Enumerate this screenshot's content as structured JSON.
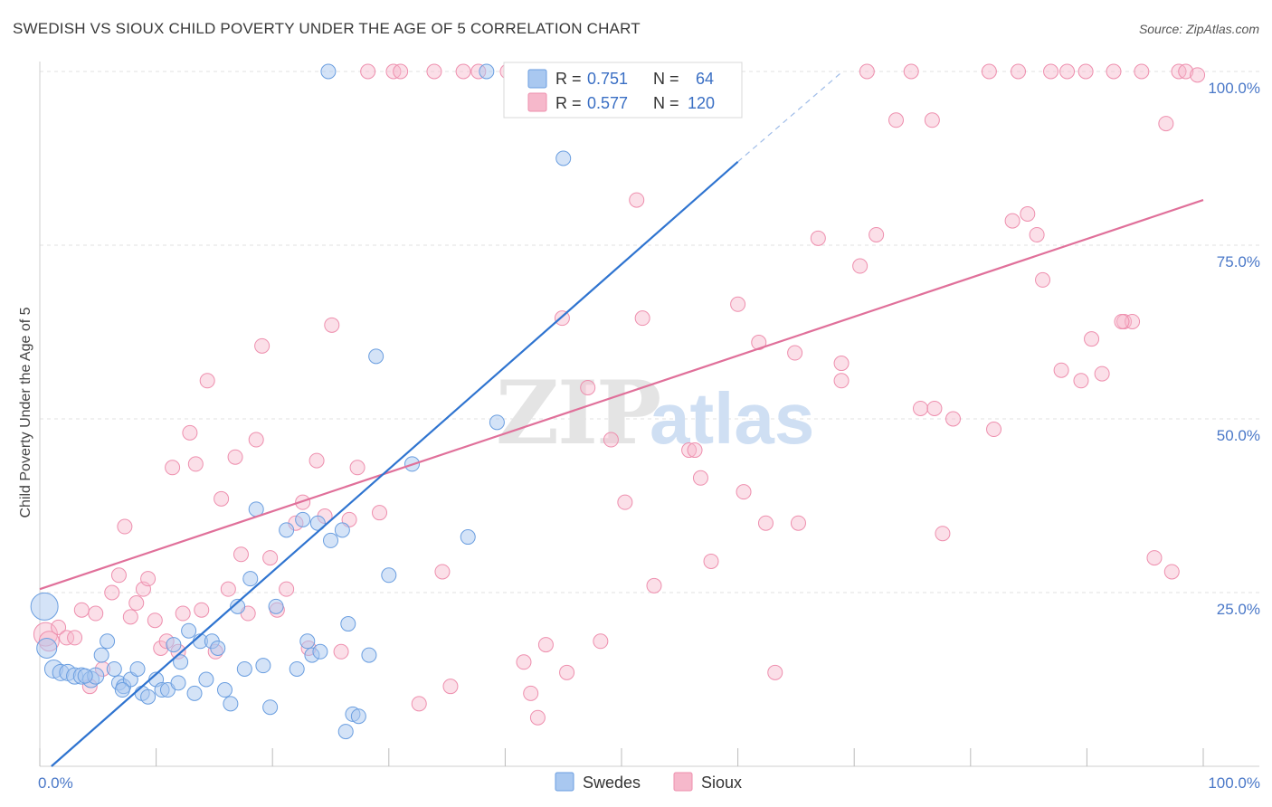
{
  "header": {
    "title": "SWEDISH VS SIOUX CHILD POVERTY UNDER THE AGE OF 5 CORRELATION CHART",
    "source": "Source: ZipAtlas.com"
  },
  "watermark": {
    "zip": "ZIP",
    "atlas": "atlas"
  },
  "legend": {
    "rows": [
      {
        "r_label": "R =",
        "r_value": "0.751",
        "n_label": "N =",
        "n_value": "64"
      },
      {
        "r_label": "R =",
        "r_value": "0.577",
        "n_label": "N =",
        "n_value": "120"
      }
    ]
  },
  "chart_data": {
    "type": "scatter",
    "title": "SWEDISH VS SIOUX CHILD POVERTY UNDER THE AGE OF 5 CORRELATION CHART",
    "xlabel": "",
    "ylabel": "Child Poverty Under the Age of 5",
    "xlim": [
      0,
      100
    ],
    "ylim": [
      0,
      100
    ],
    "x_tick_labels": [
      "0.0%",
      "100.0%"
    ],
    "y_tick_labels": [
      "25.0%",
      "50.0%",
      "75.0%",
      "100.0%"
    ],
    "y_ticks": [
      25,
      50,
      75,
      100
    ],
    "grid": true,
    "legend_position": "top-center",
    "colors": {
      "swedes_fill": "#a9c8f0",
      "swedes_stroke": "#6a9ee0",
      "swedes_line": "#2f74d0",
      "sioux_fill": "#f6b8cb",
      "sioux_stroke": "#ee8fae",
      "sioux_line": "#e0709a"
    },
    "series": [
      {
        "name": "Swedes",
        "r": 0.751,
        "n": 64,
        "trend": {
          "x": [
            1,
            60
          ],
          "y": [
            0,
            87
          ]
        },
        "trend_dash": {
          "x": [
            60,
            69
          ],
          "y": [
            87,
            100
          ]
        },
        "points": [
          [
            0.4,
            23,
            14
          ],
          [
            0.6,
            17,
            10
          ],
          [
            1.2,
            14,
            9
          ],
          [
            1.8,
            13.5,
            8
          ],
          [
            2.4,
            13.5,
            8
          ],
          [
            3,
            13,
            8
          ],
          [
            3.6,
            13,
            8
          ],
          [
            4.4,
            12.5,
            8
          ],
          [
            4.8,
            13,
            8
          ],
          [
            5.3,
            16,
            7
          ],
          [
            5.8,
            18,
            7
          ],
          [
            6.4,
            14,
            7
          ],
          [
            6.8,
            12,
            7
          ],
          [
            7.2,
            11.5,
            7
          ],
          [
            7.8,
            12.5,
            7
          ],
          [
            8.4,
            14,
            7
          ],
          [
            8.8,
            10.5,
            7
          ],
          [
            9.3,
            10,
            7
          ],
          [
            10,
            12.5,
            7
          ],
          [
            10.5,
            11,
            7
          ],
          [
            11,
            11,
            7
          ],
          [
            11.5,
            17.5,
            7
          ],
          [
            12.1,
            15,
            7
          ],
          [
            12.8,
            19.5,
            7
          ],
          [
            13.3,
            10.5,
            7
          ],
          [
            13.8,
            18,
            7
          ],
          [
            14.3,
            12.5,
            7
          ],
          [
            14.8,
            18,
            7
          ],
          [
            15.3,
            17,
            7
          ],
          [
            15.9,
            11,
            7
          ],
          [
            16.4,
            9,
            7
          ],
          [
            17,
            23,
            7
          ],
          [
            17.6,
            14,
            7
          ],
          [
            18.1,
            27,
            7
          ],
          [
            18.6,
            37,
            7
          ],
          [
            19.2,
            14.5,
            7
          ],
          [
            19.8,
            8.5,
            7
          ],
          [
            20.3,
            23,
            7
          ],
          [
            21.2,
            34,
            7
          ],
          [
            22.1,
            14,
            7
          ],
          [
            22.6,
            35.5,
            7
          ],
          [
            23,
            18,
            7
          ],
          [
            23.4,
            16,
            7
          ],
          [
            24.1,
            16.5,
            7
          ],
          [
            25,
            32.5,
            7
          ],
          [
            26,
            34,
            7
          ],
          [
            26.5,
            20.5,
            7
          ],
          [
            26.9,
            7.5,
            7
          ],
          [
            27.4,
            7.2,
            7
          ],
          [
            28.3,
            16,
            7
          ],
          [
            28.9,
            59,
            7
          ],
          [
            30,
            27.5,
            7
          ],
          [
            32,
            43.5,
            7
          ],
          [
            36.8,
            33,
            7
          ],
          [
            38.4,
            100,
            7
          ],
          [
            39.3,
            49.5,
            7
          ],
          [
            43.6,
            100,
            7
          ],
          [
            45,
            87.5,
            7
          ],
          [
            26.3,
            5,
            7
          ],
          [
            24.8,
            100,
            7
          ],
          [
            23.9,
            35,
            7
          ],
          [
            11.9,
            12,
            7
          ],
          [
            7.1,
            11,
            7
          ],
          [
            3.9,
            13,
            7
          ]
        ]
      },
      {
        "name": "Sioux",
        "r": 0.577,
        "n": 120,
        "trend": {
          "x": [
            0,
            100
          ],
          "y": [
            25.5,
            81.5
          ]
        },
        "points": [
          [
            0.5,
            19,
            12
          ],
          [
            0.8,
            18,
            10
          ],
          [
            1.6,
            20,
            7
          ],
          [
            2.3,
            18.5,
            7
          ],
          [
            3,
            18.5,
            7
          ],
          [
            3.6,
            22.5,
            7
          ],
          [
            4.3,
            11.5,
            7
          ],
          [
            4.8,
            22,
            7
          ],
          [
            5.4,
            14,
            7
          ],
          [
            6.2,
            25,
            7
          ],
          [
            6.8,
            27.5,
            7
          ],
          [
            7.3,
            34.5,
            7
          ],
          [
            7.8,
            21.5,
            7
          ],
          [
            8.3,
            23.5,
            7
          ],
          [
            8.9,
            25.5,
            7
          ],
          [
            9.3,
            27,
            7
          ],
          [
            9.9,
            21,
            7
          ],
          [
            10.4,
            17,
            7
          ],
          [
            10.9,
            18,
            7
          ],
          [
            11.4,
            43,
            7
          ],
          [
            11.9,
            16.5,
            7
          ],
          [
            12.3,
            22,
            7
          ],
          [
            12.9,
            48,
            7
          ],
          [
            13.4,
            43.5,
            7
          ],
          [
            13.9,
            22.5,
            7
          ],
          [
            14.4,
            55.5,
            7
          ],
          [
            15.1,
            16.5,
            7
          ],
          [
            15.6,
            38.5,
            7
          ],
          [
            16.2,
            25.5,
            7
          ],
          [
            16.8,
            44.5,
            7
          ],
          [
            17.3,
            30.5,
            7
          ],
          [
            17.9,
            22,
            7
          ],
          [
            18.6,
            47,
            7
          ],
          [
            19.1,
            60.5,
            7
          ],
          [
            19.8,
            30,
            7
          ],
          [
            20.4,
            22.5,
            7
          ],
          [
            21.2,
            25.5,
            7
          ],
          [
            22,
            35,
            7
          ],
          [
            22.6,
            38,
            7
          ],
          [
            23.1,
            17,
            7
          ],
          [
            23.8,
            44,
            7
          ],
          [
            24.5,
            36,
            7
          ],
          [
            25.1,
            63.5,
            7
          ],
          [
            25.9,
            16.5,
            7
          ],
          [
            26.6,
            35.5,
            7
          ],
          [
            27.3,
            43,
            7
          ],
          [
            28.2,
            100,
            7
          ],
          [
            29.2,
            36.5,
            7
          ],
          [
            30.4,
            100,
            7
          ],
          [
            31,
            100,
            7
          ],
          [
            32.6,
            9,
            7
          ],
          [
            33.9,
            100,
            7
          ],
          [
            34.6,
            28,
            7
          ],
          [
            35.3,
            11.5,
            7
          ],
          [
            36.4,
            100,
            7
          ],
          [
            37.7,
            100,
            7
          ],
          [
            40.2,
            100,
            7
          ],
          [
            41.6,
            15,
            7
          ],
          [
            42.2,
            10.5,
            7
          ],
          [
            42.8,
            7,
            7
          ],
          [
            43.5,
            17.5,
            7
          ],
          [
            44.9,
            64.5,
            7
          ],
          [
            45.3,
            13.5,
            7
          ],
          [
            47.1,
            54.5,
            7
          ],
          [
            48.2,
            18,
            7
          ],
          [
            49.1,
            47,
            7
          ],
          [
            49.7,
            100,
            7
          ],
          [
            50.3,
            38,
            7
          ],
          [
            51.3,
            81.5,
            7
          ],
          [
            51.8,
            64.5,
            7
          ],
          [
            52.8,
            26,
            7
          ],
          [
            55.1,
            100,
            7
          ],
          [
            55.8,
            45.5,
            7
          ],
          [
            56.3,
            45.5,
            7
          ],
          [
            56.8,
            41.5,
            7
          ],
          [
            57.7,
            29.5,
            7
          ],
          [
            58.9,
            100,
            7
          ],
          [
            60,
            66.5,
            7
          ],
          [
            60.5,
            39.5,
            7
          ],
          [
            61.8,
            61,
            7
          ],
          [
            62.4,
            35,
            7
          ],
          [
            63.2,
            13.5,
            7
          ],
          [
            64.9,
            59.5,
            7
          ],
          [
            65.2,
            35,
            7
          ],
          [
            66.9,
            76,
            7
          ],
          [
            68.9,
            58,
            7
          ],
          [
            68.9,
            55.5,
            7
          ],
          [
            70.5,
            72,
            7
          ],
          [
            71.1,
            100,
            7
          ],
          [
            71.9,
            76.5,
            7
          ],
          [
            74.9,
            100,
            7
          ],
          [
            75.7,
            51.5,
            7
          ],
          [
            76.9,
            51.5,
            7
          ],
          [
            77.6,
            33.5,
            7
          ],
          [
            78.5,
            50,
            7
          ],
          [
            81.6,
            100,
            7
          ],
          [
            82,
            48.5,
            7
          ],
          [
            83.6,
            78.5,
            7
          ],
          [
            84.9,
            79.5,
            7
          ],
          [
            85.7,
            76.5,
            7
          ],
          [
            86.2,
            70,
            7
          ],
          [
            86.9,
            100,
            7
          ],
          [
            87.8,
            57,
            7
          ],
          [
            88.3,
            100,
            7
          ],
          [
            89.5,
            55.5,
            7
          ],
          [
            89.9,
            100,
            7
          ],
          [
            90.4,
            61.5,
            7
          ],
          [
            91.3,
            56.5,
            7
          ],
          [
            92.3,
            100,
            7
          ],
          [
            93.2,
            64,
            7
          ],
          [
            93.9,
            64,
            7
          ],
          [
            94.7,
            100,
            7
          ],
          [
            95.8,
            30,
            7
          ],
          [
            96.8,
            92.5,
            7
          ],
          [
            97.3,
            28,
            7
          ],
          [
            97.9,
            100,
            7
          ],
          [
            98.5,
            100,
            7
          ],
          [
            99.5,
            99.5,
            7
          ],
          [
            73.6,
            93,
            7
          ],
          [
            76.7,
            93,
            7
          ],
          [
            93,
            64,
            7
          ],
          [
            84.1,
            100,
            7
          ]
        ]
      }
    ]
  },
  "bottom_legend": {
    "items": [
      "Swedes",
      "Sioux"
    ]
  }
}
